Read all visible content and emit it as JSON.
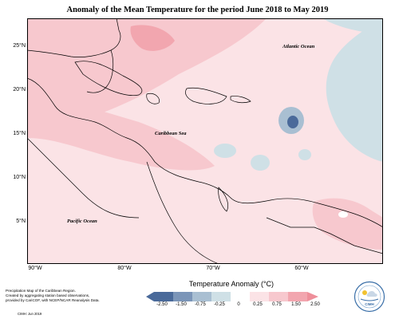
{
  "title": "Anomaly of the Mean Temperature for the period June 2018 to May 2019",
  "map": {
    "latitude_ticks": [
      "25°N",
      "20°N",
      "15°N",
      "10°N",
      "5°N"
    ],
    "longitude_ticks": [
      "90°W",
      "80°W",
      "70°W",
      "60°W"
    ],
    "labels": {
      "atlantic": "Atlantic Ocean",
      "caribbean": "Caribbean Sea",
      "pacific": "Pacific Ocean"
    }
  },
  "legend": {
    "title": "Temperature Anomaly (°C)",
    "ticks": [
      "-2.50",
      "-1.50",
      "-0.75",
      "-0.25",
      "0",
      "0.25",
      "0.75",
      "1.50",
      "2.50"
    ],
    "colors": {
      "neg_strong": "#4a6a9a",
      "neg_mid": "#7b95b8",
      "neg_light": "#a9bfd2",
      "neg_faint": "#cfe0e6",
      "neutral": "#ffffff",
      "pos_faint": "#fbe3e6",
      "pos_light": "#f7c8ce",
      "pos_mid": "#f2a6af",
      "pos_strong": "#ee8f9a"
    }
  },
  "note": {
    "line1": "Precipitation Map of the Caribbean Region.",
    "line2": "Created by aggregating station based observations,",
    "line3": "provided by CariCOF, with NCEP/NCAR Reanalysis Data.",
    "credit": "CIMH: Jun 2019"
  },
  "logo": {
    "text": "CIMH"
  }
}
